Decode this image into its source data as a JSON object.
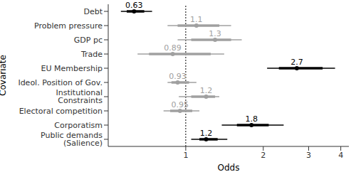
{
  "chart_data": {
    "type": "forest",
    "x_label": "Odds",
    "y_label": "Covariate",
    "categories": [
      "Public demands (Salience)",
      "Corporatism",
      "Electoral competition",
      "Institutional Constraints",
      "Ideol. Position of Gov.",
      "EU Membership",
      "Trade",
      "GDP pc",
      "Problem pressure",
      "Debt"
    ],
    "values": [
      1.2,
      1.8,
      0.95,
      1.2,
      0.93,
      2.7,
      0.89,
      1.3,
      1.1,
      0.63
    ],
    "ci_inner": [
      [
        1.13,
        1.33
      ],
      [
        1.58,
        2.1
      ],
      [
        0.87,
        1.06
      ],
      [
        1.05,
        1.3
      ],
      [
        0.88,
        1.03
      ],
      [
        2.3,
        3.4
      ],
      [
        0.72,
        1.25
      ],
      [
        1.05,
        1.5
      ],
      [
        0.93,
        1.35
      ],
      [
        0.59,
        0.69
      ]
    ],
    "ci_outer": [
      [
        1.05,
        1.45
      ],
      [
        1.38,
        2.4
      ],
      [
        0.82,
        1.13
      ],
      [
        0.94,
        1.35
      ],
      [
        0.85,
        1.1
      ],
      [
        2.07,
        3.8
      ],
      [
        0.65,
        1.41
      ],
      [
        0.93,
        1.65
      ],
      [
        0.85,
        1.5
      ],
      [
        0.56,
        0.74
      ]
    ],
    "colors": [
      "#000000",
      "#000000",
      "#a0a0a0",
      "#a0a0a0",
      "#a0a0a0",
      "#000000",
      "#a0a0a0",
      "#a0a0a0",
      "#a0a0a0",
      "#000000"
    ],
    "reference_line": 1,
    "xlim": [
      0.5,
      4.3
    ],
    "xticks": [
      1,
      2,
      3,
      4
    ],
    "log": "x",
    "data_labels": true,
    "grid": false
  }
}
